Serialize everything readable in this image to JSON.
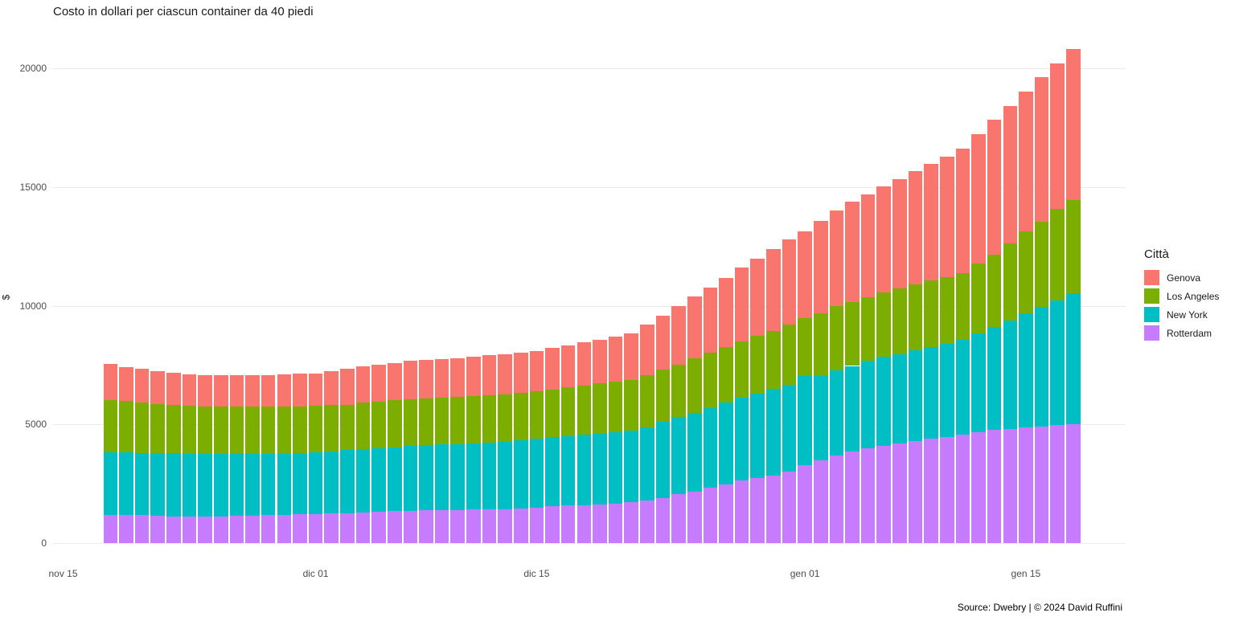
{
  "title": "Costo in dollari per ciascun container da 40 piedi",
  "footer": "Source: Dwebry | © 2024 David Ruffini",
  "y_axis": {
    "title": "$",
    "ticks": [
      0,
      5000,
      10000,
      15000,
      20000
    ]
  },
  "x_axis": {
    "ticks": [
      {
        "label": "nov 15",
        "index": -3
      },
      {
        "label": "dic 01",
        "index": 13
      },
      {
        "label": "dic 15",
        "index": 27
      },
      {
        "label": "gen 01",
        "index": 44
      },
      {
        "label": "gen 15",
        "index": 58
      }
    ]
  },
  "legend": {
    "title": "Città"
  },
  "chart_data": {
    "type": "bar",
    "stacked": true,
    "title": "Costo in dollari per ciascun container da 40 piedi",
    "xlabel": "",
    "ylabel": "$",
    "ylim": [
      0,
      21000
    ],
    "grid": "horizontal-only",
    "legend_position": "right",
    "stack_order_bottom_to_top": [
      "Rotterdam",
      "New York",
      "Los Angeles",
      "Genova"
    ],
    "x": [
      "nov 18",
      "nov 19",
      "nov 20",
      "nov 21",
      "nov 22",
      "nov 23",
      "nov 24",
      "nov 25",
      "nov 26",
      "nov 27",
      "nov 28",
      "nov 29",
      "nov 30",
      "dic 01",
      "dic 02",
      "dic 03",
      "dic 04",
      "dic 05",
      "dic 06",
      "dic 07",
      "dic 08",
      "dic 09",
      "dic 10",
      "dic 11",
      "dic 12",
      "dic 13",
      "dic 14",
      "dic 15",
      "dic 16",
      "dic 17",
      "dic 18",
      "dic 19",
      "dic 20",
      "dic 21",
      "dic 22",
      "dic 23",
      "dic 24",
      "dic 25",
      "dic 26",
      "dic 27",
      "dic 28",
      "dic 29",
      "dic 30",
      "dic 31",
      "gen 01",
      "gen 02",
      "gen 03",
      "gen 04",
      "gen 05",
      "gen 06",
      "gen 07",
      "gen 08",
      "gen 09",
      "gen 10",
      "gen 11",
      "gen 12",
      "gen 13",
      "gen 14",
      "gen 15",
      "gen 16",
      "gen 17",
      "gen 18"
    ],
    "series": [
      {
        "name": "Genova",
        "color": "#F8766D",
        "values": [
          1520,
          1440,
          1435,
          1385,
          1375,
          1330,
          1325,
          1320,
          1320,
          1320,
          1320,
          1330,
          1360,
          1385,
          1440,
          1515,
          1525,
          1550,
          1570,
          1615,
          1635,
          1645,
          1655,
          1680,
          1690,
          1690,
          1695,
          1715,
          1745,
          1770,
          1830,
          1850,
          1890,
          1950,
          2145,
          2280,
          2485,
          2600,
          2740,
          2910,
          3110,
          3260,
          3445,
          3580,
          3630,
          3900,
          4020,
          4220,
          4325,
          4485,
          4620,
          4785,
          4890,
          5055,
          5275,
          5445,
          5705,
          5780,
          5900,
          6090,
          6130,
          6340
        ]
      },
      {
        "name": "Los Angeles",
        "color": "#7CAE00",
        "values": [
          2200,
          2170,
          2120,
          2075,
          2030,
          2005,
          2000,
          1995,
          1995,
          2000,
          2000,
          2000,
          1970,
          1940,
          1940,
          1925,
          1970,
          1975,
          1970,
          1975,
          1975,
          1965,
          1970,
          1985,
          2005,
          2010,
          1995,
          1985,
          2000,
          2045,
          2075,
          2125,
          2140,
          2140,
          2195,
          2200,
          2210,
          2310,
          2365,
          2340,
          2370,
          2435,
          2445,
          2545,
          2460,
          2630,
          2690,
          2695,
          2690,
          2695,
          2750,
          2780,
          2815,
          2810,
          2800,
          2960,
          3050,
          3255,
          3470,
          3580,
          3855,
          3940
        ]
      },
      {
        "name": "New York",
        "color": "#00BFC4",
        "values": [
          2640,
          2635,
          2625,
          2650,
          2650,
          2640,
          2650,
          2625,
          2615,
          2605,
          2585,
          2575,
          2580,
          2615,
          2630,
          2650,
          2655,
          2680,
          2700,
          2725,
          2740,
          2765,
          2775,
          2785,
          2800,
          2825,
          2860,
          2900,
          2910,
          2930,
          2955,
          2965,
          2990,
          3015,
          3105,
          3215,
          3235,
          3295,
          3330,
          3450,
          3480,
          3555,
          3645,
          3630,
          3730,
          3550,
          3590,
          3615,
          3700,
          3755,
          3770,
          3810,
          3865,
          3930,
          3990,
          4150,
          4340,
          4565,
          4800,
          5040,
          5250,
          5530
        ]
      },
      {
        "name": "Rotterdam",
        "color": "#C77CFF",
        "values": [
          1195,
          1175,
          1175,
          1140,
          1130,
          1130,
          1105,
          1130,
          1140,
          1150,
          1175,
          1195,
          1220,
          1220,
          1240,
          1265,
          1295,
          1320,
          1340,
          1355,
          1375,
          1385,
          1400,
          1410,
          1420,
          1435,
          1460,
          1500,
          1555,
          1580,
          1600,
          1635,
          1670,
          1725,
          1780,
          1895,
          2065,
          2175,
          2345,
          2480,
          2640,
          2740,
          2855,
          3025,
          3300,
          3500,
          3700,
          3850,
          3980,
          4100,
          4200,
          4300,
          4400,
          4480,
          4570,
          4680,
          4760,
          4820,
          4870,
          4920,
          4965,
          5000
        ]
      }
    ]
  }
}
